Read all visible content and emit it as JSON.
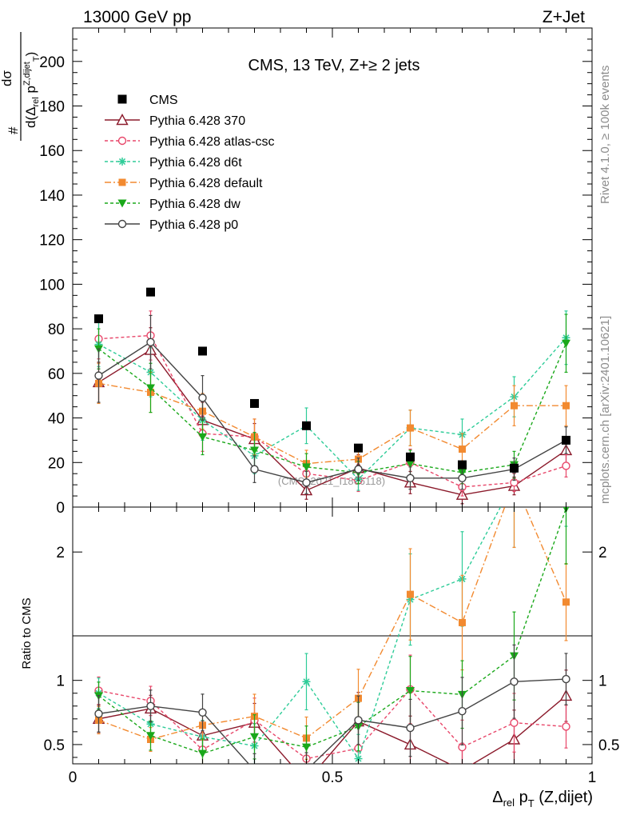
{
  "header": {
    "left": "13000 GeV pp",
    "right": "Z+Jet",
    "side_top": "Rivet 4.1.0, ≥ 100k events",
    "side_bottom": "mcplots.cern.ch [arXiv:2401.10621]",
    "watermark": "(CMS_2021_I1866118)"
  },
  "chart_data": {
    "type": "line",
    "title": "CMS, 13 TeV, Z+≥ 2 jets",
    "xlabel": "Δrel pT (Z,dijet)",
    "ylabel": "# / dσ/d(Δrel pT Z,dijet)",
    "ratio_ylabel": "Ratio to CMS",
    "xlim": [
      0,
      1
    ],
    "ylim": [
      0,
      215
    ],
    "ratio_ylim": [
      0.35,
      2.35
    ],
    "x": [
      0.05,
      0.15,
      0.25,
      0.35,
      0.45,
      0.55,
      0.65,
      0.75,
      0.85,
      0.95
    ],
    "x_ticks": [
      0,
      0.5,
      1
    ],
    "x_tick_labels": [
      "0",
      "0.5",
      "1"
    ],
    "y_ticks": [
      0,
      20,
      40,
      60,
      80,
      100,
      120,
      140,
      160,
      180,
      200
    ],
    "y_tick_labels": [
      "0",
      "20",
      "40",
      "60",
      "80",
      "100",
      "120",
      "140",
      "160",
      "180",
      "200"
    ],
    "ratio_ticks": [
      0.5,
      1,
      2
    ],
    "ratio_tick_labels": [
      "0.5",
      "1",
      "2"
    ],
    "data": {
      "name": "CMS",
      "values": [
        84.5,
        96.5,
        70,
        46.5,
        36.5,
        26.5,
        22.5,
        19,
        17.5,
        30
      ],
      "color": "#000000"
    },
    "series": [
      {
        "name": "Pythia 6.428 370",
        "color": "#8b1a2b",
        "marker": "triangle-open",
        "dash": "",
        "values": [
          56,
          70.5,
          39,
          30.5,
          7.5,
          17.5,
          11,
          5.5,
          9.5,
          25.5
        ],
        "errors": [
          9,
          10,
          8,
          7,
          4,
          6,
          5,
          4,
          4,
          6
        ],
        "ratio": [
          0.7,
          0.78,
          0.57,
          0.67,
          0.21,
          0.68,
          0.5,
          0.3,
          0.54,
          0.88
        ]
      },
      {
        "name": "Pythia 6.428 atlas-csc",
        "color": "#e8476a",
        "marker": "circle-open",
        "dash": "4 3",
        "values": [
          75.5,
          77,
          33,
          31.5,
          15,
          12,
          20,
          9,
          11,
          18.5
        ],
        "errors": [
          9,
          11,
          8,
          8,
          5,
          5,
          6,
          4,
          4,
          5
        ],
        "ratio": [
          0.92,
          0.84,
          0.46,
          0.69,
          0.39,
          0.47,
          0.93,
          0.48,
          0.67,
          0.64
        ]
      },
      {
        "name": "Pythia 6.428 d6t",
        "color": "#2ecc98",
        "marker": "star",
        "dash": "4 3",
        "values": [
          73,
          60.5,
          39,
          23,
          36.5,
          12.5,
          35.5,
          32.5,
          49.5,
          76
        ],
        "errors": [
          10,
          11,
          9,
          8,
          8,
          5,
          8,
          7,
          9,
          12
        ],
        "ratio": [
          0.9,
          0.66,
          0.56,
          0.49,
          0.99,
          0.39,
          1.63,
          1.79,
          2.55,
          2.6
        ]
      },
      {
        "name": "Pythia 6.428 default",
        "color": "#f28a30",
        "marker": "square",
        "dash": "8 3 2 3",
        "values": [
          55.5,
          51.5,
          43,
          31.5,
          19.5,
          21.5,
          35.5,
          26,
          45.5,
          45.5
        ],
        "errors": [
          9,
          9,
          8,
          8,
          6,
          6,
          8,
          7,
          9,
          9
        ],
        "ratio": [
          0.69,
          0.54,
          0.65,
          0.72,
          0.55,
          0.86,
          1.67,
          1.45,
          2.55,
          1.61
        ]
      },
      {
        "name": "Pythia 6.428 dw",
        "color": "#1aa81a",
        "marker": "triangle-down",
        "dash": "4 3",
        "values": [
          71,
          53.5,
          31.5,
          25.5,
          18,
          15.5,
          19.5,
          15.5,
          19,
          73.5
        ],
        "errors": [
          9,
          11,
          8,
          8,
          6,
          5,
          6,
          5,
          6,
          13
        ],
        "ratio": [
          0.88,
          0.57,
          0.43,
          0.56,
          0.48,
          0.64,
          0.92,
          0.89,
          1.19,
          2.34
        ]
      },
      {
        "name": "Pythia 6.428 p0",
        "color": "#444444",
        "marker": "circle-open",
        "dash": "",
        "values": [
          59,
          74,
          49,
          17,
          11,
          17,
          13,
          13,
          17,
          30
        ],
        "errors": [
          12,
          12,
          10,
          6,
          5,
          5,
          5,
          5,
          5,
          6
        ],
        "ratio": [
          0.74,
          0.8,
          0.75,
          0.3,
          0.3,
          0.69,
          0.63,
          0.76,
          0.99,
          1.01
        ]
      }
    ]
  }
}
